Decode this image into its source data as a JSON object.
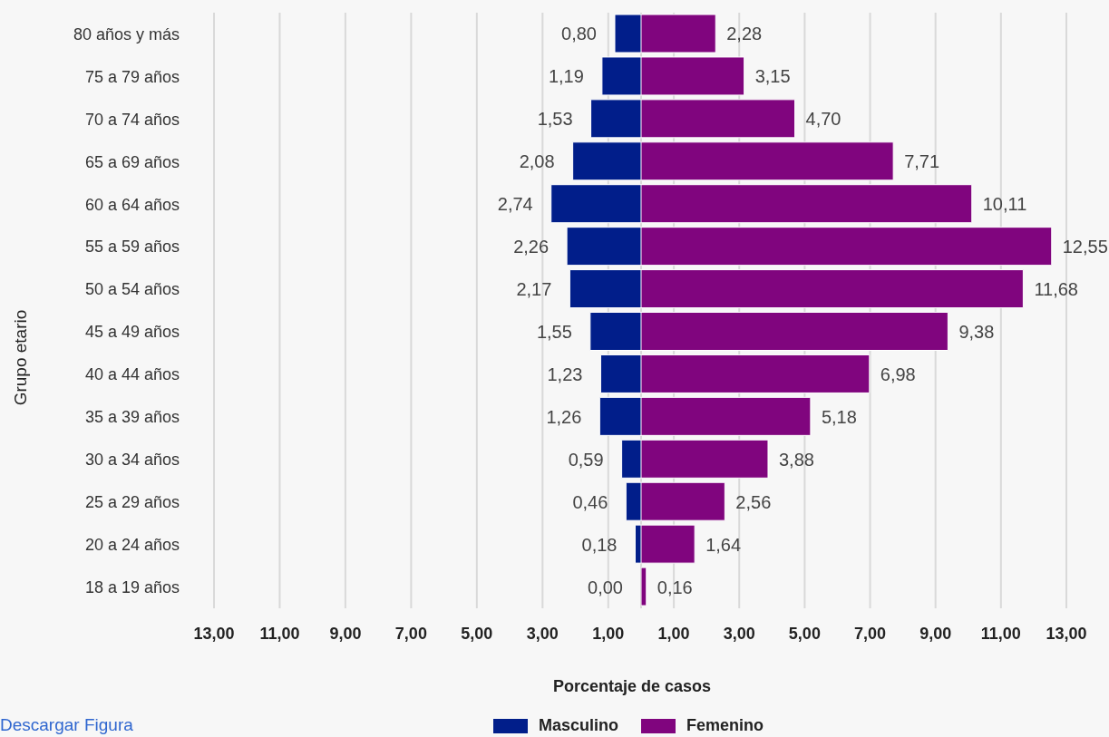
{
  "chart_data": [
    {
      "type": "bar",
      "orientation": "horizontal",
      "xlabel": "Porcentaje de casos",
      "ylabel": "Grupo etario",
      "categories": [
        "80 años y más",
        "75 a 79 años",
        "70 a 74 años",
        "65 a 69 años",
        "60 a 64 años",
        "55 a 59 años",
        "50 a 54 años",
        "45 a 49 años",
        "40 a 44 años",
        "35 a 39 años",
        "30 a 34 años",
        "25 a 29 años",
        "20 a 24 años",
        "18 a 19 años"
      ],
      "series": [
        {
          "name": "Masculino",
          "color": "#011e8a",
          "values": [
            0.8,
            1.19,
            1.53,
            2.08,
            2.74,
            2.26,
            2.17,
            1.55,
            1.23,
            1.26,
            0.59,
            0.46,
            0.18,
            0
          ],
          "value_labels": [
            "0,80",
            "1,19",
            "1,53",
            "2,08",
            "2,74",
            "2,26",
            "2,17",
            "1,55",
            "1,23",
            "1,26",
            "0,59",
            "0,46",
            "0,18",
            "0,00"
          ]
        }
      ],
      "xlim": [
        13,
        0
      ],
      "xticks": [
        {
          "value": 13,
          "label": "13,00"
        },
        {
          "value": 11,
          "label": "11,00"
        },
        {
          "value": 9,
          "label": "9,00"
        },
        {
          "value": 7,
          "label": "7,00"
        },
        {
          "value": 5,
          "label": "5,00"
        },
        {
          "value": 3,
          "label": "3,00"
        },
        {
          "value": 1,
          "label": "1,00"
        }
      ],
      "grid": "x",
      "legend": "bottom",
      "annotations": [
        "Descargar Figura"
      ]
    },
    {
      "type": "bar",
      "orientation": "horizontal",
      "categories": [
        null,
        null,
        null,
        null,
        null,
        null,
        null,
        null,
        null,
        null,
        null,
        null,
        null,
        null
      ],
      "series": [
        {
          "name": "Femenino",
          "color": "#80057e",
          "values": [
            2.28,
            3.15,
            4.7,
            7.71,
            10.11,
            12.55,
            11.68,
            9.38,
            6.98,
            5.18,
            3.88,
            2.56,
            1.64,
            0.16
          ],
          "value_labels": [
            "2,28",
            "3,15",
            "4,70",
            "7,71",
            "10,11",
            "12,55",
            "11,68",
            "9,38",
            "6,98",
            "5,18",
            "3,88",
            "2,56",
            "1,64",
            "0,16"
          ]
        }
      ],
      "xlim": [
        0,
        13
      ],
      "xticks": [
        {
          "value": 1,
          "label": "1,00"
        },
        {
          "value": 3,
          "label": "3,00"
        },
        {
          "value": 5,
          "label": "5,00"
        },
        {
          "value": 7,
          "label": "7,00"
        },
        {
          "value": 9,
          "label": "9,00"
        },
        {
          "value": 11,
          "label": "11,00"
        },
        {
          "value": 13,
          "label": "13,00"
        }
      ],
      "grid": "x",
      "legend": "bottom",
      "tick_labels": "x"
    }
  ]
}
